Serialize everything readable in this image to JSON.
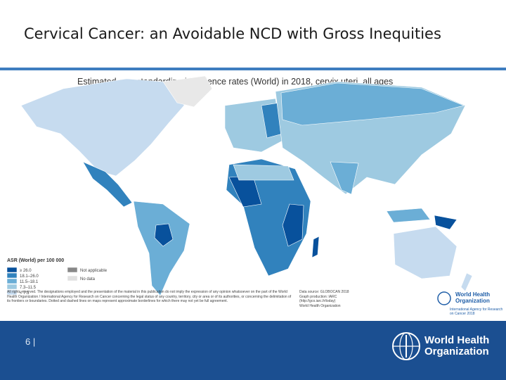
{
  "header": {
    "title": "Cervical Cancer: an Avoidable NCD with Gross Inequities"
  },
  "map": {
    "title": "Estimated age-standardized incidence rates (World) in 2018, cervix uteri, all ages",
    "legend": {
      "title": "ASR (World) per 100 000",
      "items": [
        {
          "label": "≥ 26.0",
          "color": "#08519c"
        },
        {
          "label": "18.1–26.0",
          "color": "#3182bd"
        },
        {
          "label": "11.5–18.1",
          "color": "#6baed6"
        },
        {
          "label": "7.3–11.5",
          "color": "#9ecae1"
        },
        {
          "label": "< 7.3",
          "color": "#c6dbef"
        },
        {
          "label": "Not applicable",
          "color": "#888888"
        },
        {
          "label": "No data",
          "color": "#e0e0e0"
        }
      ]
    },
    "disclaimer": "All rights reserved. The designations employed and the presentation of the material in this publication do not imply the expression of any opinion whatsoever on the part of the World Health Organization / International Agency for Research on Cancer concerning the legal status of any country, territory, city or area or of its authorities, or concerning the delimitation of its frontiers or boundaries. Dotted and dashed lines on maps represent approximate borderlines for which there may not yet be full agreement.",
    "source": [
      "Data source: GLOBOCAN 2018",
      "Graph production: IARC",
      "(http://gco.iarc.fr/today)",
      "World Health Organization"
    ],
    "logo": {
      "name": "World Health Organization",
      "agency": "International Agency for Research on Cancer 2018"
    }
  },
  "footer": {
    "page": "6 |",
    "logo": "World Health Organization"
  }
}
